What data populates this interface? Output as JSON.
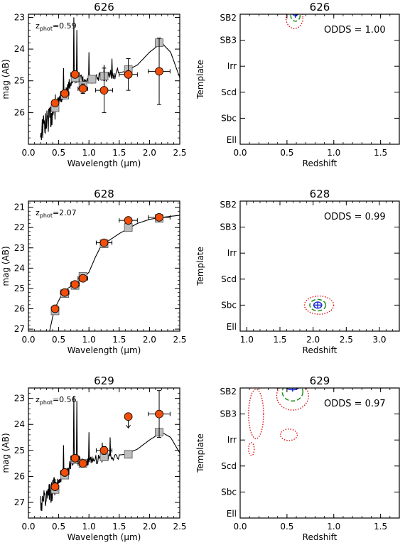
{
  "chart_data": [
    {
      "type": "line",
      "panel": "sed",
      "title": "626",
      "xlabel": "Wavelength (µm)",
      "ylabel": "mag (AB)",
      "xlim": [
        0.0,
        2.5
      ],
      "ylim": [
        27.0,
        22.9
      ],
      "xticks": [
        0.0,
        0.5,
        1.0,
        1.5,
        2.0,
        2.5
      ],
      "xtick_labels": [
        "0.0",
        "0.5",
        "1.0",
        "1.5",
        "2.0",
        "2.5"
      ],
      "yticks": [
        23,
        24,
        25,
        26
      ],
      "ytick_labels": [
        "23",
        "24",
        "25",
        "26"
      ],
      "annotation": {
        "prefix": "z",
        "subscript": "phot",
        "text": "=0.59"
      },
      "model_curve": [
        [
          0.2,
          26.6
        ],
        [
          0.3,
          26.3
        ],
        [
          0.38,
          26.1
        ],
        [
          0.45,
          25.8
        ],
        [
          0.52,
          25.6
        ],
        [
          0.6,
          25.4
        ],
        [
          0.68,
          25.1
        ],
        [
          0.76,
          24.9
        ],
        [
          0.85,
          24.95
        ],
        [
          0.95,
          25.1
        ],
        [
          1.05,
          25.0
        ],
        [
          1.2,
          24.9
        ],
        [
          1.4,
          24.8
        ],
        [
          1.6,
          24.7
        ],
        [
          1.8,
          24.5
        ],
        [
          2.0,
          24.1
        ],
        [
          2.2,
          23.8
        ],
        [
          2.35,
          24.1
        ],
        [
          2.5,
          24.9
        ]
      ],
      "emission_lines": [
        [
          0.58,
          24.6
        ],
        [
          0.75,
          23.0
        ],
        [
          0.8,
          23.4
        ],
        [
          1.0,
          24.1
        ],
        [
          1.25,
          24.5
        ],
        [
          1.38,
          24.3
        ]
      ],
      "model_mags": {
        "x": [
          0.44,
          0.6,
          0.77,
          0.9,
          1.05,
          1.25,
          1.65,
          2.16
        ],
        "y": [
          25.85,
          25.45,
          24.9,
          25.15,
          24.95,
          24.85,
          24.65,
          23.8
        ]
      },
      "observed": {
        "x": [
          0.44,
          0.6,
          0.77,
          0.9,
          1.25,
          1.65,
          2.16
        ],
        "y": [
          25.7,
          25.4,
          24.8,
          25.25,
          25.3,
          24.8,
          24.7
        ],
        "xerr": [
          0.05,
          0.07,
          0.07,
          0.08,
          0.14,
          0.15,
          0.18
        ],
        "yerr": [
          0.08,
          0.12,
          0.1,
          0.15,
          0.7,
          0.5,
          1.05
        ]
      }
    },
    {
      "type": "contour",
      "panel": "pdf",
      "title": "626",
      "xlabel": "Redshift",
      "ylabel": "Template",
      "xlim": [
        0.0,
        1.7
      ],
      "xticks": [
        0.0,
        0.5,
        1.0,
        1.5
      ],
      "xtick_labels": [
        "0.0",
        "0.5",
        "1.0",
        "1.5"
      ],
      "templates": [
        "Ell",
        "Sbc",
        "Scd",
        "Irr",
        "SB3",
        "SB2"
      ],
      "annotation": "ODDS = 1.00",
      "best_fit": {
        "z": 0.59,
        "template": 5
      },
      "contours": [
        {
          "level": "inner",
          "style": "solid",
          "color": "#1a2bd6",
          "z_center": 0.59,
          "t_center": 5.05,
          "z_halfwidth": 0.025,
          "t_halfheight": 0.12
        },
        {
          "level": "middle",
          "style": "dashed",
          "color": "#1f8a1f",
          "z_center": 0.59,
          "t_center": 4.95,
          "z_halfwidth": 0.05,
          "t_halfheight": 0.22
        },
        {
          "level": "outer",
          "style": "dotted",
          "color": "#e02020",
          "z_center": 0.58,
          "t_center": 4.85,
          "z_halfwidth": 0.09,
          "t_halfheight": 0.4
        }
      ]
    },
    {
      "type": "line",
      "panel": "sed",
      "title": "628",
      "xlabel": "Wavelength (µm)",
      "ylabel": "mag (AB)",
      "xlim": [
        0.0,
        2.5
      ],
      "ylim": [
        27.1,
        20.7
      ],
      "xticks": [
        0.0,
        0.5,
        1.0,
        1.5,
        2.0,
        2.5
      ],
      "xtick_labels": [
        "0.0",
        "0.5",
        "1.0",
        "1.5",
        "2.0",
        "2.5"
      ],
      "yticks": [
        21,
        22,
        23,
        24,
        25,
        26,
        27
      ],
      "ytick_labels": [
        "21",
        "22",
        "23",
        "24",
        "25",
        "26",
        "27"
      ],
      "annotation": {
        "prefix": "z",
        "subscript": "phot",
        "text": "=2.07"
      },
      "model_curve": [
        [
          0.35,
          27.1
        ],
        [
          0.4,
          26.4
        ],
        [
          0.45,
          25.9
        ],
        [
          0.55,
          25.3
        ],
        [
          0.65,
          25.0
        ],
        [
          0.75,
          24.8
        ],
        [
          0.9,
          24.5
        ],
        [
          1.0,
          24.2
        ],
        [
          1.1,
          23.5
        ],
        [
          1.2,
          22.9
        ],
        [
          1.35,
          22.6
        ],
        [
          1.5,
          22.3
        ],
        [
          1.65,
          22.05
        ],
        [
          1.8,
          21.8
        ],
        [
          2.0,
          21.6
        ],
        [
          2.2,
          21.5
        ],
        [
          2.35,
          21.45
        ],
        [
          2.5,
          21.4
        ]
      ],
      "emission_lines": [],
      "model_mags": {
        "x": [
          0.44,
          0.6,
          0.77,
          0.9,
          1.25,
          1.65,
          2.16
        ],
        "y": [
          26.1,
          25.25,
          24.85,
          24.4,
          22.8,
          22.0,
          21.55
        ]
      },
      "observed": {
        "x": [
          0.44,
          0.6,
          0.77,
          0.9,
          1.25,
          1.65,
          2.16
        ],
        "y": [
          26.0,
          25.2,
          24.8,
          24.5,
          22.75,
          21.65,
          21.5
        ],
        "xerr": [
          0.05,
          0.07,
          0.07,
          0.08,
          0.13,
          0.15,
          0.18
        ],
        "yerr": [
          0.1,
          0.08,
          0.08,
          0.08,
          0.08,
          0.06,
          0.06
        ]
      }
    },
    {
      "type": "contour",
      "panel": "pdf",
      "title": "628",
      "xlabel": "Redshift",
      "ylabel": "Template",
      "xlim": [
        0.9,
        3.3
      ],
      "xticks": [
        1.0,
        1.5,
        2.0,
        2.5,
        3.0
      ],
      "xtick_labels": [
        "1.0",
        "1.5",
        "2.0",
        "2.5",
        "3.0"
      ],
      "templates": [
        "Ell",
        "Sbc",
        "Scd",
        "Irr",
        "SB3",
        "SB2"
      ],
      "annotation": "ODDS = 0.99",
      "best_fit": {
        "z": 2.07,
        "template": 1.0
      },
      "contours": [
        {
          "level": "inner",
          "style": "solid",
          "color": "#1a2bd6",
          "z_center": 2.07,
          "t_center": 1.0,
          "z_halfwidth": 0.06,
          "t_halfheight": 0.12
        },
        {
          "level": "middle",
          "style": "dashed",
          "color": "#1f8a1f",
          "z_center": 2.07,
          "t_center": 1.0,
          "z_halfwidth": 0.12,
          "t_halfheight": 0.22
        },
        {
          "level": "outer",
          "style": "dotted",
          "color": "#e02020",
          "z_center": 2.09,
          "t_center": 1.0,
          "z_halfwidth": 0.22,
          "t_halfheight": 0.35
        }
      ]
    },
    {
      "type": "line",
      "panel": "sed",
      "title": "629",
      "xlabel": "Wavelength (µm)",
      "ylabel": "mag (AB)",
      "xlim": [
        0.0,
        2.5
      ],
      "ylim": [
        27.6,
        22.6
      ],
      "xticks": [
        0.0,
        0.5,
        1.0,
        1.5,
        2.0,
        2.5
      ],
      "xtick_labels": [
        "0.0",
        "0.5",
        "1.0",
        "1.5",
        "2.0",
        "2.5"
      ],
      "yticks": [
        23,
        24,
        25,
        26,
        27
      ],
      "ytick_labels": [
        "23",
        "24",
        "25",
        "26",
        "27"
      ],
      "annotation": {
        "prefix": "z",
        "subscript": "phot",
        "text": "=0.56"
      },
      "model_curve": [
        [
          0.2,
          27.0
        ],
        [
          0.3,
          26.8
        ],
        [
          0.38,
          26.6
        ],
        [
          0.45,
          26.3
        ],
        [
          0.52,
          26.1
        ],
        [
          0.6,
          25.9
        ],
        [
          0.68,
          25.6
        ],
        [
          0.76,
          25.3
        ],
        [
          0.85,
          25.4
        ],
        [
          0.95,
          25.5
        ],
        [
          1.05,
          25.4
        ],
        [
          1.2,
          25.3
        ],
        [
          1.4,
          25.2
        ],
        [
          1.6,
          25.15
        ],
        [
          1.8,
          24.95
        ],
        [
          2.0,
          24.6
        ],
        [
          2.2,
          24.3
        ],
        [
          2.35,
          24.5
        ],
        [
          2.5,
          25.1
        ]
      ],
      "emission_lines": [
        [
          0.58,
          24.8
        ],
        [
          0.75,
          22.9
        ],
        [
          0.8,
          23.1
        ],
        [
          1.0,
          24.3
        ],
        [
          1.22,
          24.7
        ],
        [
          1.35,
          24.5
        ]
      ],
      "model_mags": {
        "x": [
          0.44,
          0.6,
          0.77,
          0.9,
          1.25,
          1.65,
          2.16
        ],
        "y": [
          26.5,
          25.95,
          25.35,
          25.5,
          25.25,
          25.15,
          24.3
        ]
      },
      "observed": {
        "x": [
          0.44,
          0.6,
          0.77,
          0.9,
          1.25,
          1.65,
          2.16
        ],
        "y": [
          26.4,
          25.85,
          25.3,
          25.5,
          25.0,
          23.7,
          23.6
        ],
        "xerr": [
          0.05,
          0.07,
          0.07,
          0.08,
          0.13,
          0.0,
          0.18
        ],
        "yerr": [
          0.12,
          0.12,
          0.1,
          0.12,
          0.15,
          0.0,
          0.9
        ],
        "upper_limit": [
          false,
          false,
          false,
          false,
          false,
          true,
          false
        ]
      }
    },
    {
      "type": "contour",
      "panel": "pdf",
      "title": "629",
      "xlabel": "Redshift",
      "ylabel": "Template",
      "xlim": [
        0.0,
        1.7
      ],
      "xticks": [
        0.0,
        0.5,
        1.0,
        1.5
      ],
      "xtick_labels": [
        "0.0",
        "0.5",
        "1.0",
        "1.5"
      ],
      "templates": [
        "Ell",
        "Sbc",
        "Scd",
        "Irr",
        "SB3",
        "SB2"
      ],
      "annotation": "ODDS = 0.97",
      "best_fit": {
        "z": 0.56,
        "template": 5
      },
      "contours": [
        {
          "level": "inner",
          "style": "solid",
          "color": "#1a2bd6",
          "z_center": 0.56,
          "t_center": 5.05,
          "z_halfwidth": 0.07,
          "t_halfheight": 0.12
        },
        {
          "level": "middle",
          "style": "dashed",
          "color": "#1f8a1f",
          "z_center": 0.56,
          "t_center": 4.85,
          "z_halfwidth": 0.11,
          "t_halfheight": 0.35
        },
        {
          "level": "outer",
          "style": "dotted",
          "color": "#e02020",
          "z_center": 0.56,
          "t_center": 4.7,
          "z_halfwidth": 0.17,
          "t_halfheight": 0.55
        },
        {
          "level": "outer",
          "style": "dotted",
          "color": "#e02020",
          "z_center": 0.17,
          "t_center": 4.0,
          "z_halfwidth": 0.08,
          "t_halfheight": 0.95
        },
        {
          "level": "outer",
          "style": "dotted",
          "color": "#e02020",
          "z_center": 0.52,
          "t_center": 3.2,
          "z_halfwidth": 0.09,
          "t_halfheight": 0.22
        },
        {
          "level": "outer",
          "style": "dotted",
          "color": "#e02020",
          "z_center": 0.12,
          "t_center": 2.65,
          "z_halfwidth": 0.03,
          "t_halfheight": 0.25
        }
      ]
    }
  ],
  "colors": {
    "observed_marker": "#f04e0a",
    "model_marker": "#bdbdbd",
    "axis": "#000000"
  }
}
